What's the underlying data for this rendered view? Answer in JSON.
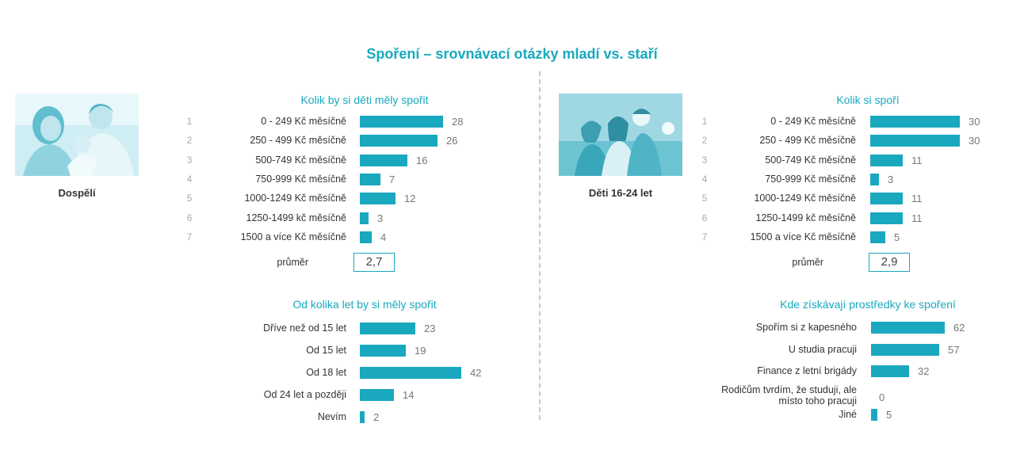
{
  "title": "Spoření – srovnávací otázky mladí vs. staří",
  "groups": {
    "left": "Dospělí",
    "right": "Děti 16-24 let"
  },
  "colors": {
    "accent": "#1aa8bf",
    "title": "#17a9bf",
    "rank": "#aaaaaa"
  },
  "average_label": "průměr",
  "chart_data": [
    {
      "type": "bar",
      "orientation": "horizontal",
      "title": "Kolik by si děti měly spořit",
      "ranks": [
        "1",
        "2",
        "3",
        "4",
        "5",
        "6",
        "7"
      ],
      "categories": [
        "0 - 249 Kč měsíčně",
        "250 - 499 Kč měsíčně",
        "500-749 Kč měsíčně",
        "750-999 Kč měsíčně",
        "1000-1249 Kč měsíčně",
        "1250-1499 kč měsíčně",
        "1500 a více Kč měsíčně"
      ],
      "values": [
        28,
        26,
        16,
        7,
        12,
        3,
        4
      ],
      "average": "2,7"
    },
    {
      "type": "bar",
      "orientation": "horizontal",
      "title": "Od kolika let by si měly spořit",
      "categories": [
        "Dříve než od 15 let",
        "Od 15 let",
        "Od 18 let",
        "Od 24 let a později",
        "Nevím"
      ],
      "values": [
        23,
        19,
        42,
        14,
        2
      ]
    },
    {
      "type": "bar",
      "orientation": "horizontal",
      "title": "Kolik si spoří",
      "ranks": [
        "1",
        "2",
        "3",
        "4",
        "5",
        "6",
        "7"
      ],
      "categories": [
        "0 - 249 Kč měsíčně",
        "250 - 499 Kč měsíčně",
        "500-749 Kč měsíčně",
        "750-999 Kč měsíčně",
        "1000-1249 Kč měsíčně",
        "1250-1499 kč měsíčně",
        "1500 a více Kč měsíčně"
      ],
      "values": [
        30,
        30,
        11,
        3,
        11,
        11,
        5
      ],
      "average": "2,9"
    },
    {
      "type": "bar",
      "orientation": "horizontal",
      "title": "Kde získávají prostředky ke spoření",
      "categories": [
        "Spořím si z kapesného",
        "U studia pracuji",
        "Finance z letní brigády",
        "Rodičům tvrdím, že studuji, ale místo toho pracuji",
        "Jiné"
      ],
      "values": [
        62,
        57,
        32,
        0,
        5
      ]
    }
  ]
}
